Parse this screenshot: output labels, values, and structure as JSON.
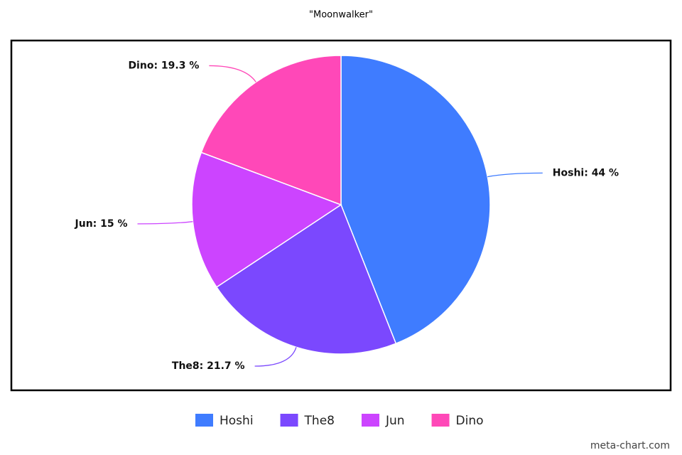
{
  "chart_data": {
    "type": "pie",
    "title": "\"Moonwalker\"",
    "categories": [
      "Hoshi",
      "The8",
      "Jun",
      "Dino"
    ],
    "values": [
      44,
      21.7,
      15,
      19.3
    ],
    "value_labels": [
      "Hoshi: 44 %",
      "The8: 21.7 %",
      "Jun: 15 %",
      "Dino: 19.3 %"
    ],
    "colors": [
      "#3f7cff",
      "#7b48fe",
      "#cc44ff",
      "#ff48b8"
    ],
    "legend": "bottom",
    "watermark": "meta-chart.com"
  }
}
